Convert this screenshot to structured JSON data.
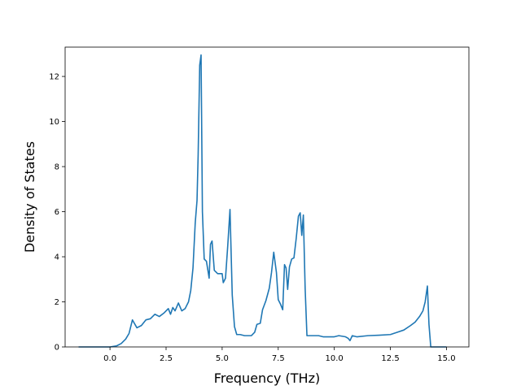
{
  "chart_data": {
    "type": "line",
    "title": "",
    "xlabel": "Frequency (THz)",
    "ylabel": "Density of States",
    "xlim": [
      -2.0,
      16.0
    ],
    "ylim": [
      0,
      13.3
    ],
    "x_ticks": [
      0.0,
      2.5,
      5.0,
      7.5,
      10.0,
      12.5,
      15.0
    ],
    "x_tick_labels": [
      "0.0",
      "2.5",
      "5.0",
      "7.5",
      "10.0",
      "12.5",
      "15.0"
    ],
    "y_ticks": [
      0,
      2,
      4,
      6,
      8,
      10,
      12
    ],
    "y_tick_labels": [
      "0",
      "2",
      "4",
      "6",
      "8",
      "10",
      "12"
    ],
    "grid": false,
    "legend": "none",
    "series": [
      {
        "color": "#1f77b4",
        "points": [
          [
            -1.4,
            0.0
          ],
          [
            0.0,
            0.0
          ],
          [
            0.3,
            0.05
          ],
          [
            0.5,
            0.15
          ],
          [
            0.7,
            0.35
          ],
          [
            0.85,
            0.6
          ],
          [
            1.0,
            1.2
          ],
          [
            1.2,
            0.85
          ],
          [
            1.4,
            0.95
          ],
          [
            1.6,
            1.2
          ],
          [
            1.8,
            1.25
          ],
          [
            2.0,
            1.45
          ],
          [
            2.2,
            1.35
          ],
          [
            2.4,
            1.5
          ],
          [
            2.6,
            1.7
          ],
          [
            2.7,
            1.45
          ],
          [
            2.8,
            1.75
          ],
          [
            2.9,
            1.6
          ],
          [
            3.05,
            1.95
          ],
          [
            3.2,
            1.6
          ],
          [
            3.35,
            1.7
          ],
          [
            3.5,
            2.0
          ],
          [
            3.6,
            2.5
          ],
          [
            3.7,
            3.5
          ],
          [
            3.8,
            5.5
          ],
          [
            3.88,
            6.5
          ],
          [
            3.93,
            8.5
          ],
          [
            4.0,
            12.5
          ],
          [
            4.06,
            12.95
          ],
          [
            4.12,
            6.0
          ],
          [
            4.2,
            3.9
          ],
          [
            4.3,
            3.8
          ],
          [
            4.42,
            3.05
          ],
          [
            4.48,
            4.55
          ],
          [
            4.55,
            4.7
          ],
          [
            4.65,
            3.4
          ],
          [
            4.8,
            3.25
          ],
          [
            5.0,
            3.25
          ],
          [
            5.05,
            2.85
          ],
          [
            5.15,
            3.05
          ],
          [
            5.25,
            4.5
          ],
          [
            5.35,
            6.1
          ],
          [
            5.45,
            2.3
          ],
          [
            5.55,
            0.9
          ],
          [
            5.65,
            0.55
          ],
          [
            5.8,
            0.55
          ],
          [
            6.0,
            0.5
          ],
          [
            6.3,
            0.5
          ],
          [
            6.45,
            0.65
          ],
          [
            6.55,
            1.0
          ],
          [
            6.7,
            1.05
          ],
          [
            6.8,
            1.65
          ],
          [
            6.95,
            2.05
          ],
          [
            7.1,
            2.6
          ],
          [
            7.2,
            3.3
          ],
          [
            7.3,
            4.2
          ],
          [
            7.42,
            3.3
          ],
          [
            7.5,
            2.1
          ],
          [
            7.6,
            1.9
          ],
          [
            7.7,
            1.65
          ],
          [
            7.78,
            3.65
          ],
          [
            7.85,
            3.5
          ],
          [
            7.92,
            2.55
          ],
          [
            8.0,
            3.55
          ],
          [
            8.1,
            3.9
          ],
          [
            8.2,
            3.95
          ],
          [
            8.3,
            4.8
          ],
          [
            8.4,
            5.8
          ],
          [
            8.48,
            5.95
          ],
          [
            8.55,
            4.95
          ],
          [
            8.62,
            5.85
          ],
          [
            8.7,
            2.6
          ],
          [
            8.78,
            0.5
          ],
          [
            9.0,
            0.5
          ],
          [
            9.3,
            0.5
          ],
          [
            9.5,
            0.45
          ],
          [
            10.0,
            0.45
          ],
          [
            10.2,
            0.5
          ],
          [
            10.5,
            0.45
          ],
          [
            10.62,
            0.38
          ],
          [
            10.7,
            0.28
          ],
          [
            10.8,
            0.5
          ],
          [
            11.0,
            0.45
          ],
          [
            11.5,
            0.5
          ],
          [
            12.0,
            0.52
          ],
          [
            12.5,
            0.55
          ],
          [
            12.8,
            0.65
          ],
          [
            13.1,
            0.75
          ],
          [
            13.4,
            0.95
          ],
          [
            13.6,
            1.1
          ],
          [
            13.8,
            1.35
          ],
          [
            13.95,
            1.6
          ],
          [
            14.05,
            2.0
          ],
          [
            14.15,
            2.7
          ],
          [
            14.22,
            1.0
          ],
          [
            14.3,
            0.0
          ],
          [
            15.0,
            0.0
          ]
        ]
      }
    ]
  }
}
